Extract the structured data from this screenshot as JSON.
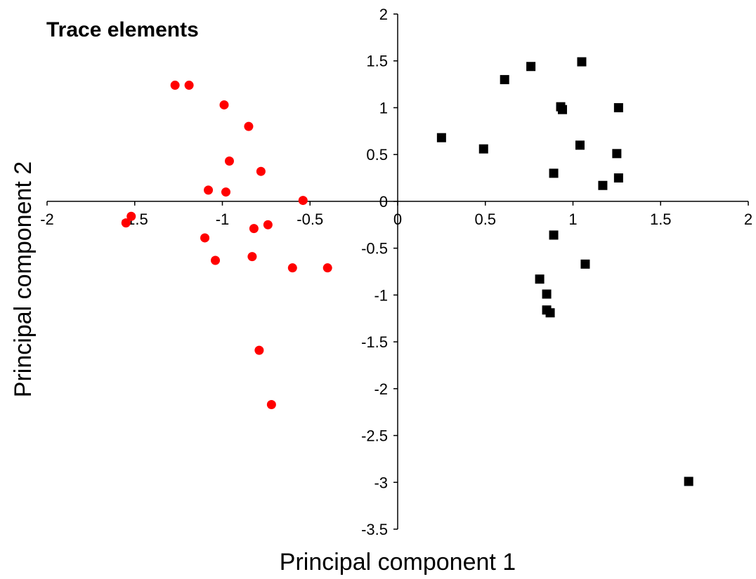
{
  "chart_data": {
    "type": "scatter",
    "title": "Trace elements",
    "xlabel": "Principal component 1",
    "ylabel": "Principal component 2",
    "xlim": [
      -2,
      2
    ],
    "ylim": [
      -3.5,
      2
    ],
    "xticks": [
      -2,
      -1.5,
      -1,
      -0.5,
      0,
      0.5,
      1,
      1.5,
      2
    ],
    "yticks": [
      2,
      1.5,
      1,
      0.5,
      0,
      -0.5,
      -1,
      -1.5,
      -2,
      -2.5,
      -3,
      -3.5
    ],
    "xtick_labels": [
      "-2",
      "-1.5",
      "-1",
      "-0.5",
      "0",
      "0.5",
      "1",
      "1.5",
      "2"
    ],
    "ytick_labels": [
      "2",
      "1.5",
      "1",
      "0.5",
      "0",
      "-0.5",
      "-1",
      "-1.5",
      "-2",
      "-2.5",
      "-3",
      "-3.5"
    ],
    "grid": false,
    "series": [
      {
        "marker": "circle",
        "color": "#ff0000",
        "points": [
          {
            "x": -1.27,
            "y": 1.24
          },
          {
            "x": -1.19,
            "y": 1.24
          },
          {
            "x": -0.99,
            "y": 1.03
          },
          {
            "x": -0.85,
            "y": 0.8
          },
          {
            "x": -0.96,
            "y": 0.43
          },
          {
            "x": -0.78,
            "y": 0.32
          },
          {
            "x": -1.08,
            "y": 0.12
          },
          {
            "x": -0.98,
            "y": 0.1
          },
          {
            "x": -0.54,
            "y": 0.01
          },
          {
            "x": -1.52,
            "y": -0.16
          },
          {
            "x": -1.55,
            "y": -0.23
          },
          {
            "x": -0.82,
            "y": -0.29
          },
          {
            "x": -0.74,
            "y": -0.25
          },
          {
            "x": -1.1,
            "y": -0.39
          },
          {
            "x": -0.83,
            "y": -0.59
          },
          {
            "x": -1.04,
            "y": -0.63
          },
          {
            "x": -0.6,
            "y": -0.71
          },
          {
            "x": -0.4,
            "y": -0.71
          },
          {
            "x": -0.79,
            "y": -1.59
          },
          {
            "x": -0.72,
            "y": -2.17
          }
        ]
      },
      {
        "marker": "square",
        "color": "#000000",
        "points": [
          {
            "x": 0.25,
            "y": 0.68
          },
          {
            "x": 0.49,
            "y": 0.56
          },
          {
            "x": 0.61,
            "y": 1.3
          },
          {
            "x": 0.76,
            "y": 1.44
          },
          {
            "x": 1.05,
            "y": 1.49
          },
          {
            "x": 0.93,
            "y": 1.01
          },
          {
            "x": 0.94,
            "y": 0.98
          },
          {
            "x": 1.26,
            "y": 1.0
          },
          {
            "x": 1.04,
            "y": 0.6
          },
          {
            "x": 1.25,
            "y": 0.51
          },
          {
            "x": 0.89,
            "y": 0.3
          },
          {
            "x": 1.26,
            "y": 0.25
          },
          {
            "x": 1.17,
            "y": 0.17
          },
          {
            "x": 0.89,
            "y": -0.36
          },
          {
            "x": 1.07,
            "y": -0.67
          },
          {
            "x": 0.81,
            "y": -0.83
          },
          {
            "x": 0.85,
            "y": -0.99
          },
          {
            "x": 0.85,
            "y": -1.16
          },
          {
            "x": 0.87,
            "y": -1.19
          },
          {
            "x": 1.66,
            "y": -2.99
          }
        ]
      }
    ]
  }
}
